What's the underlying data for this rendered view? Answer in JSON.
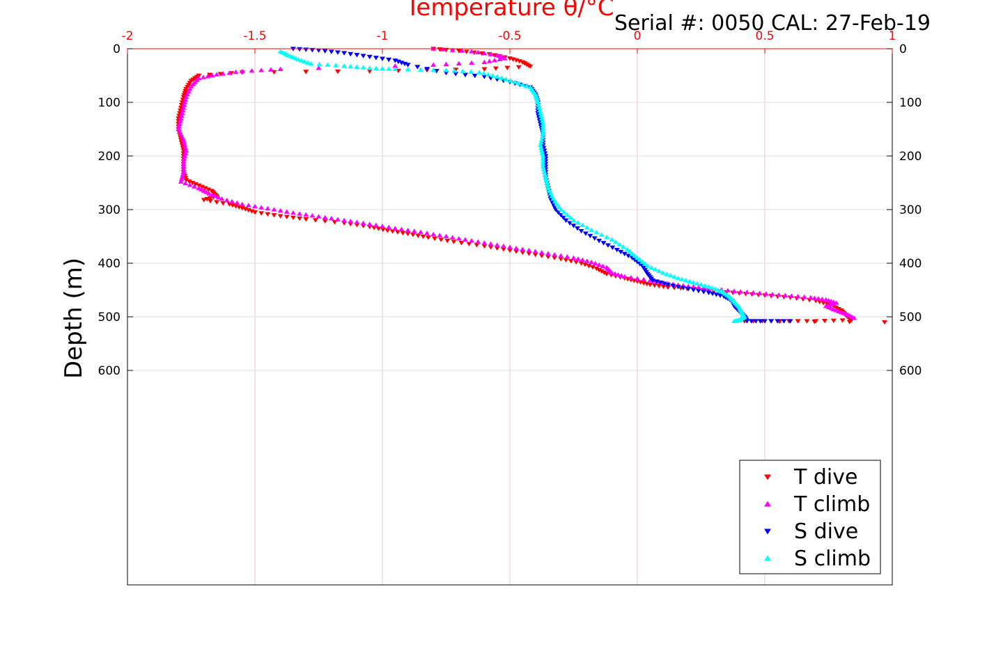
{
  "chart_data": {
    "type": "scatter",
    "xlabel": "Temperature θ/°C",
    "ylabel": "Depth (m)",
    "annotation": "Serial #: 0050  CAL: 27-Feb-19",
    "xlim": [
      -2,
      1
    ],
    "ylim": [
      0,
      1000
    ],
    "y_reversed": true,
    "xticks": [
      "-2",
      "-1.5",
      "-1",
      "-0.5",
      "0",
      "0.5",
      "1"
    ],
    "xtick_values": [
      -2,
      -1.5,
      -1,
      -0.5,
      0,
      0.5,
      1
    ],
    "yticks": [
      "0",
      "100",
      "200",
      "300",
      "400",
      "500",
      "600"
    ],
    "ytick_values": [
      0,
      100,
      200,
      300,
      400,
      500,
      600
    ],
    "grid": true,
    "legend_position": "bottom-right",
    "series": [
      {
        "name": "T dive",
        "color": "#ff0000",
        "marker": "triangle-down",
        "points": [
          [
            -0.8,
            0
          ],
          [
            -0.7,
            4
          ],
          [
            -0.58,
            10
          ],
          [
            -0.5,
            18
          ],
          [
            -0.45,
            25
          ],
          [
            -0.42,
            33
          ],
          [
            -0.6,
            38
          ],
          [
            -1.05,
            42
          ],
          [
            -1.55,
            44
          ],
          [
            -1.72,
            50
          ],
          [
            -1.75,
            60
          ],
          [
            -1.77,
            75
          ],
          [
            -1.78,
            90
          ],
          [
            -1.79,
            110
          ],
          [
            -1.8,
            130
          ],
          [
            -1.8,
            150
          ],
          [
            -1.79,
            170
          ],
          [
            -1.78,
            190
          ],
          [
            -1.78,
            210
          ],
          [
            -1.78,
            230
          ],
          [
            -1.77,
            245
          ],
          [
            -1.72,
            255
          ],
          [
            -1.67,
            265
          ],
          [
            -1.65,
            275
          ],
          [
            -1.7,
            282
          ],
          [
            -1.6,
            290
          ],
          [
            -1.55,
            297
          ],
          [
            -1.5,
            305
          ],
          [
            -1.4,
            312
          ],
          [
            -1.3,
            318
          ],
          [
            -1.15,
            325
          ],
          [
            -1.05,
            332
          ],
          [
            -0.98,
            339
          ],
          [
            -0.9,
            345
          ],
          [
            -0.82,
            352
          ],
          [
            -0.72,
            360
          ],
          [
            -0.6,
            368
          ],
          [
            -0.5,
            376
          ],
          [
            -0.4,
            384
          ],
          [
            -0.3,
            392
          ],
          [
            -0.22,
            400
          ],
          [
            -0.16,
            410
          ],
          [
            -0.12,
            420
          ],
          [
            -0.05,
            428
          ],
          [
            0.0,
            434
          ],
          [
            0.05,
            440
          ],
          [
            0.12,
            445
          ],
          [
            0.22,
            448
          ],
          [
            0.3,
            452
          ],
          [
            0.4,
            456
          ],
          [
            0.5,
            460
          ],
          [
            0.6,
            464
          ],
          [
            0.7,
            470
          ],
          [
            0.76,
            478
          ],
          [
            0.8,
            488
          ],
          [
            0.82,
            498
          ],
          [
            0.84,
            506
          ],
          [
            0.7,
            508
          ],
          [
            0.56,
            508
          ],
          [
            0.42,
            508
          ],
          [
            0.97,
            510
          ]
        ]
      },
      {
        "name": "T climb",
        "color": "#ff00ff",
        "marker": "triangle-up",
        "points": [
          [
            -0.8,
            0
          ],
          [
            -0.65,
            5
          ],
          [
            -0.55,
            12
          ],
          [
            -0.52,
            18
          ],
          [
            -0.6,
            25
          ],
          [
            -0.8,
            30
          ],
          [
            -1.4,
            38
          ],
          [
            -1.55,
            42
          ],
          [
            -1.65,
            48
          ],
          [
            -1.72,
            55
          ],
          [
            -1.75,
            70
          ],
          [
            -1.77,
            90
          ],
          [
            -1.78,
            110
          ],
          [
            -1.79,
            130
          ],
          [
            -1.8,
            150
          ],
          [
            -1.78,
            170
          ],
          [
            -1.77,
            190
          ],
          [
            -1.78,
            210
          ],
          [
            -1.78,
            230
          ],
          [
            -1.79,
            248
          ],
          [
            -1.72,
            260
          ],
          [
            -1.68,
            270
          ],
          [
            -1.63,
            280
          ],
          [
            -1.55,
            290
          ],
          [
            -1.45,
            298
          ],
          [
            -1.35,
            306
          ],
          [
            -1.25,
            313
          ],
          [
            -1.15,
            320
          ],
          [
            -1.05,
            327
          ],
          [
            -0.95,
            335
          ],
          [
            -0.85,
            342
          ],
          [
            -0.75,
            350
          ],
          [
            -0.65,
            358
          ],
          [
            -0.55,
            366
          ],
          [
            -0.45,
            374
          ],
          [
            -0.35,
            382
          ],
          [
            -0.25,
            390
          ],
          [
            -0.18,
            398
          ],
          [
            -0.12,
            408
          ],
          [
            -0.1,
            418
          ],
          [
            -0.05,
            425
          ],
          [
            0.05,
            432
          ],
          [
            0.12,
            438
          ],
          [
            0.2,
            443
          ],
          [
            0.28,
            447
          ],
          [
            0.38,
            452
          ],
          [
            0.48,
            456
          ],
          [
            0.58,
            460
          ],
          [
            0.68,
            464
          ],
          [
            0.74,
            468
          ],
          [
            0.78,
            474
          ],
          [
            0.74,
            480
          ],
          [
            0.78,
            488
          ],
          [
            0.82,
            495
          ],
          [
            0.85,
            502
          ]
        ]
      },
      {
        "name": "S dive",
        "color": "#0000ff",
        "marker": "triangle-down",
        "points": [
          [
            -1.35,
            0
          ],
          [
            -1.25,
            3
          ],
          [
            -1.15,
            8
          ],
          [
            -1.05,
            15
          ],
          [
            -0.95,
            22
          ],
          [
            -0.9,
            30
          ],
          [
            -0.75,
            45
          ],
          [
            -0.6,
            52
          ],
          [
            -0.5,
            62
          ],
          [
            -0.42,
            72
          ],
          [
            -0.4,
            85
          ],
          [
            -0.39,
            100
          ],
          [
            -0.39,
            120
          ],
          [
            -0.38,
            140
          ],
          [
            -0.37,
            160
          ],
          [
            -0.37,
            180
          ],
          [
            -0.36,
            200
          ],
          [
            -0.36,
            220
          ],
          [
            -0.36,
            240
          ],
          [
            -0.35,
            260
          ],
          [
            -0.34,
            280
          ],
          [
            -0.32,
            300
          ],
          [
            -0.28,
            320
          ],
          [
            -0.22,
            340
          ],
          [
            -0.15,
            358
          ],
          [
            -0.08,
            375
          ],
          [
            -0.02,
            390
          ],
          [
            0.02,
            405
          ],
          [
            0.04,
            420
          ],
          [
            0.06,
            432
          ],
          [
            0.12,
            440
          ],
          [
            0.2,
            448
          ],
          [
            0.28,
            455
          ],
          [
            0.34,
            462
          ],
          [
            0.37,
            470
          ],
          [
            0.38,
            480
          ],
          [
            0.4,
            490
          ],
          [
            0.42,
            500
          ],
          [
            0.43,
            508
          ],
          [
            0.5,
            508
          ],
          [
            0.6,
            508
          ]
        ]
      },
      {
        "name": "S climb",
        "color": "#00ffff",
        "marker": "triangle-up",
        "points": [
          [
            -1.4,
            5
          ],
          [
            -1.37,
            12
          ],
          [
            -1.33,
            20
          ],
          [
            -1.28,
            28
          ],
          [
            -1.15,
            32
          ],
          [
            -1.05,
            36
          ],
          [
            -0.95,
            38
          ],
          [
            -0.75,
            40
          ],
          [
            -0.62,
            44
          ],
          [
            -0.55,
            52
          ],
          [
            -0.48,
            62
          ],
          [
            -0.42,
            72
          ],
          [
            -0.4,
            85
          ],
          [
            -0.39,
            100
          ],
          [
            -0.38,
            120
          ],
          [
            -0.37,
            140
          ],
          [
            -0.37,
            160
          ],
          [
            -0.38,
            180
          ],
          [
            -0.37,
            200
          ],
          [
            -0.37,
            220
          ],
          [
            -0.36,
            240
          ],
          [
            -0.35,
            260
          ],
          [
            -0.33,
            280
          ],
          [
            -0.3,
            300
          ],
          [
            -0.25,
            320
          ],
          [
            -0.18,
            338
          ],
          [
            -0.1,
            356
          ],
          [
            -0.04,
            374
          ],
          [
            0.0,
            390
          ],
          [
            0.04,
            405
          ],
          [
            0.1,
            418
          ],
          [
            0.16,
            428
          ],
          [
            0.22,
            436
          ],
          [
            0.28,
            444
          ],
          [
            0.33,
            452
          ],
          [
            0.36,
            462
          ],
          [
            0.38,
            472
          ],
          [
            0.4,
            482
          ],
          [
            0.41,
            492
          ],
          [
            0.42,
            500
          ],
          [
            0.4,
            506
          ],
          [
            0.38,
            508
          ]
        ]
      }
    ]
  }
}
